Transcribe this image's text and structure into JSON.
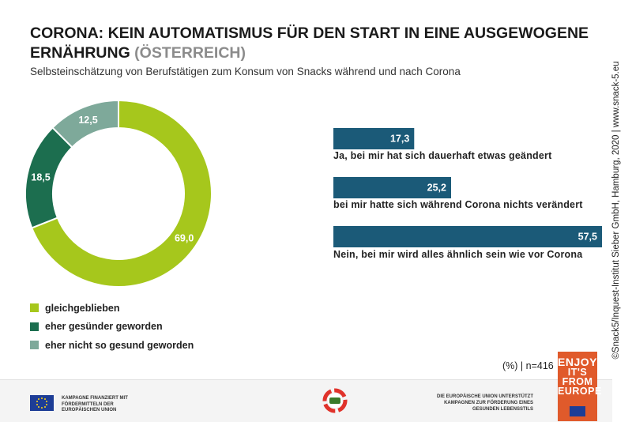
{
  "header": {
    "title_main": "CORONA: KEIN AUTOMATISMUS FÜR DEN START IN EINE AUSGEWOGENE ERNÄHRUNG",
    "title_accent": "(ÖSTERREICH)",
    "subtitle": "Selbsteinschätzung von Berufstätigen zum Konsum von Snacks während und nach Corona"
  },
  "side_credit": "©Snack5/Inquest-Institut Sieber GmbH, Hamburg, 2020 | www.snack-5.eu",
  "chart_data": [
    {
      "type": "pie",
      "donut": true,
      "categories": [
        "gleichgeblieben",
        "eher gesünder geworden",
        "eher nicht so gesund geworden"
      ],
      "values": [
        69.0,
        18.5,
        12.5
      ],
      "value_labels": [
        "69,0",
        "18,5",
        "12,5"
      ],
      "colors": [
        "#a6c71c",
        "#1c6e4f",
        "#7ea99a"
      ],
      "legend_placement": "bottom-left"
    },
    {
      "type": "bar",
      "orientation": "horizontal",
      "categories": [
        "Ja, bei mir hat sich dauerhaft etwas geändert",
        "bei mir hatte sich während Corona nichts verändert",
        "Nein, bei mir wird alles ähnlich sein wie vor Corona"
      ],
      "values": [
        17.3,
        25.2,
        57.5
      ],
      "value_labels": [
        "17,3",
        "25,2",
        "57,5"
      ],
      "color": "#1b5a78"
    }
  ],
  "footnote": "(%)  |  n=416",
  "footer": {
    "left_text": "KAMPAGNE FINANZIERT MIT FÖRDERMITTELN DER EUROPÄISCHEN UNION",
    "center_logo": "5x am tag",
    "right_text": "DIE EUROPÄISCHE UNION UNTERSTÜTZT KAMPAGNEN ZUR FÖRDERUNG EINES GESUNDEN LEBENSSTILS",
    "enjoy_lines": [
      "ENJOY",
      "IT'S FROM",
      "EUROPE"
    ]
  }
}
